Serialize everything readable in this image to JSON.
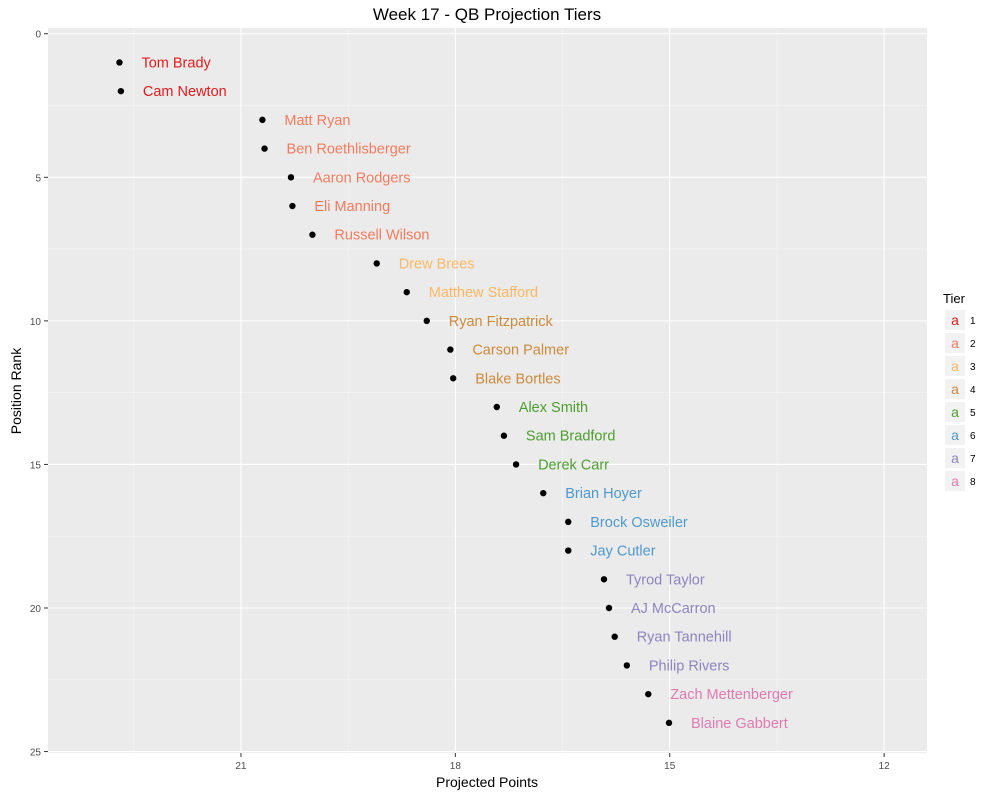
{
  "chart_data": {
    "type": "scatter",
    "title": "Week 17 - QB Projection Tiers",
    "xlabel": "Projected Points",
    "ylabel": "Position Rank",
    "x_reversed": true,
    "y_reversed": true,
    "xlim": [
      11.4,
      23.7
    ],
    "ylim": [
      25,
      0
    ],
    "xticks": [
      21,
      18,
      15,
      12
    ],
    "yticks": [
      0,
      5,
      10,
      15,
      20,
      25
    ],
    "grid": true,
    "legend": {
      "title": "Tier",
      "position": "right",
      "glyph": "a",
      "entries": [
        {
          "label": "1",
          "color": "#E41A1C"
        },
        {
          "label": "2",
          "color": "#F47B5D"
        },
        {
          "label": "3",
          "color": "#FDB863"
        },
        {
          "label": "4",
          "color": "#CD8A3C"
        },
        {
          "label": "5",
          "color": "#4D9F2F"
        },
        {
          "label": "6",
          "color": "#4E99CF"
        },
        {
          "label": "7",
          "color": "#8E85BF"
        },
        {
          "label": "8",
          "color": "#E07BB1"
        }
      ]
    },
    "points": [
      {
        "name": "Tom Brady",
        "x": 22.7,
        "y": 1,
        "tier": 1
      },
      {
        "name": "Cam Newton",
        "x": 22.68,
        "y": 2,
        "tier": 1
      },
      {
        "name": "Matt Ryan",
        "x": 20.7,
        "y": 3,
        "tier": 2
      },
      {
        "name": "Ben Roethlisberger",
        "x": 20.67,
        "y": 4,
        "tier": 2
      },
      {
        "name": "Aaron Rodgers",
        "x": 20.3,
        "y": 5,
        "tier": 2
      },
      {
        "name": "Eli Manning",
        "x": 20.28,
        "y": 6,
        "tier": 2
      },
      {
        "name": "Russell Wilson",
        "x": 20.0,
        "y": 7,
        "tier": 2
      },
      {
        "name": "Drew Brees",
        "x": 19.1,
        "y": 8,
        "tier": 3
      },
      {
        "name": "Matthew Stafford",
        "x": 18.68,
        "y": 9,
        "tier": 3
      },
      {
        "name": "Ryan Fitzpatrick",
        "x": 18.4,
        "y": 10,
        "tier": 4
      },
      {
        "name": "Carson Palmer",
        "x": 18.07,
        "y": 11,
        "tier": 4
      },
      {
        "name": "Blake Bortles",
        "x": 18.03,
        "y": 12,
        "tier": 4
      },
      {
        "name": "Alex Smith",
        "x": 17.42,
        "y": 13,
        "tier": 5
      },
      {
        "name": "Sam Bradford",
        "x": 17.32,
        "y": 14,
        "tier": 5
      },
      {
        "name": "Derek Carr",
        "x": 17.15,
        "y": 15,
        "tier": 5
      },
      {
        "name": "Brian Hoyer",
        "x": 16.77,
        "y": 16,
        "tier": 6
      },
      {
        "name": "Brock Osweiler",
        "x": 16.42,
        "y": 17,
        "tier": 6
      },
      {
        "name": "Jay Cutler",
        "x": 16.42,
        "y": 18,
        "tier": 6
      },
      {
        "name": "Tyrod Taylor",
        "x": 15.92,
        "y": 19,
        "tier": 7
      },
      {
        "name": "AJ McCarron",
        "x": 15.85,
        "y": 20,
        "tier": 7
      },
      {
        "name": "Ryan Tannehill",
        "x": 15.77,
        "y": 21,
        "tier": 7
      },
      {
        "name": "Philip Rivers",
        "x": 15.6,
        "y": 22,
        "tier": 7
      },
      {
        "name": "Zach Mettenberger",
        "x": 15.3,
        "y": 23,
        "tier": 8
      },
      {
        "name": "Blaine Gabbert",
        "x": 15.01,
        "y": 24,
        "tier": 8
      }
    ]
  }
}
